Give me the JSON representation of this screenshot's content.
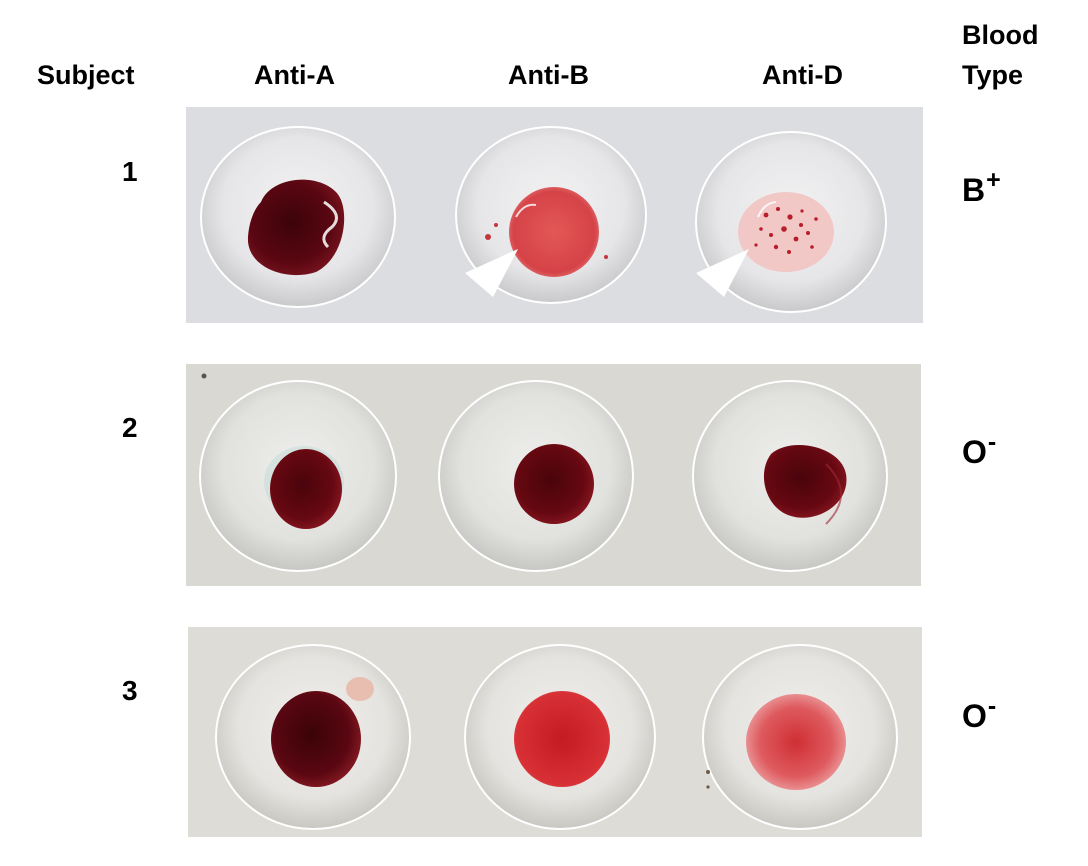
{
  "headers": {
    "subject": "Subject",
    "anti_a": "Anti-A",
    "anti_b": "Anti-B",
    "anti_d": "Anti-D",
    "blood_line1": "Blood",
    "blood_line2": "Type"
  },
  "rows": [
    {
      "subject": "1",
      "type_letter": "B",
      "type_sign": "+"
    },
    {
      "subject": "2",
      "type_letter": "O",
      "type_sign": "-"
    },
    {
      "subject": "3",
      "type_letter": "O",
      "type_sign": "-"
    }
  ],
  "colors": {
    "plate_row1": "#dcdde0",
    "plate_row2": "#d9d8d3",
    "plate_row3": "#dddcd6",
    "blood_dark": "#5a0712",
    "blood_mid": "#a3121c",
    "blood_light": "#d43a3f",
    "arrow": "#ffffff"
  }
}
